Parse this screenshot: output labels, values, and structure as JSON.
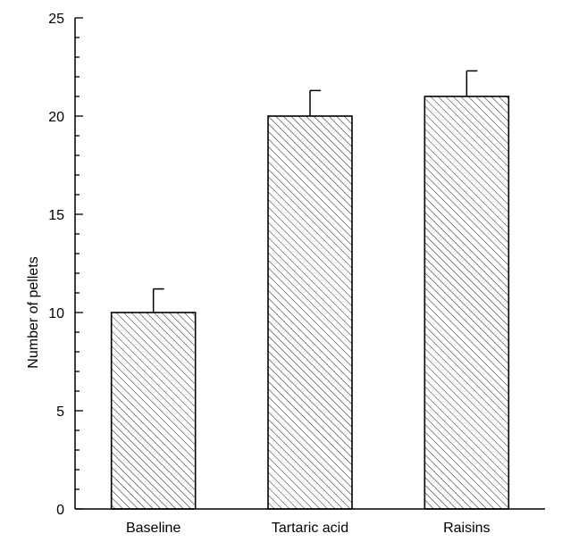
{
  "chart_data": {
    "type": "bar",
    "title": "",
    "xlabel": "",
    "ylabel": "Number of pellets",
    "categories": [
      "Baseline",
      "Tartaric acid",
      "Raisins"
    ],
    "values": [
      10,
      20,
      21
    ],
    "errors": [
      1.2,
      1.3,
      1.3
    ],
    "ylim": [
      0,
      25
    ],
    "major_ticks": [
      0,
      5,
      10,
      15,
      20,
      25
    ],
    "minor_tick_step": 1,
    "bar_fill": "hatched",
    "colors": {
      "axis": "#000000",
      "bar_fill": "#ffffff",
      "bar_stroke": "#000000",
      "hatch": "#000000"
    }
  }
}
